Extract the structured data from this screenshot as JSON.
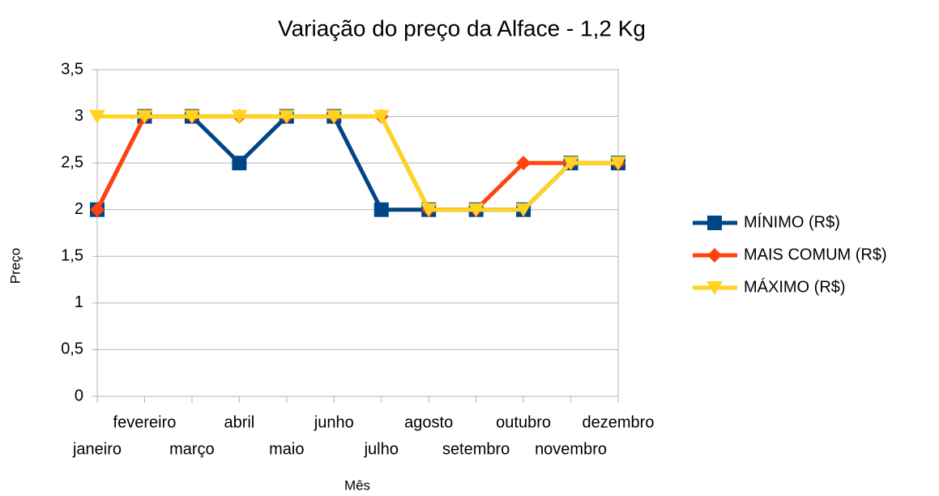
{
  "chart_data": {
    "type": "line",
    "title": "Variação do preço da Alface - 1,2 Kg",
    "x_label": "Mês",
    "y_label": "Preço",
    "categories": [
      "janeiro",
      "fevereiro",
      "março",
      "abril",
      "maio",
      "junho",
      "julho",
      "agosto",
      "setembro",
      "outubro",
      "novembro",
      "dezembro"
    ],
    "series": [
      {
        "name": "MÍNIMO (R$)",
        "color": "#004586",
        "marker": "square",
        "values": [
          2,
          3,
          3,
          2.5,
          3,
          3,
          2,
          2,
          2,
          2,
          2.5,
          2.5
        ]
      },
      {
        "name": "MAIS COMUM (R$)",
        "color": "#ff420e",
        "marker": "diamond",
        "values": [
          2,
          3,
          3,
          3,
          3,
          3,
          3,
          2,
          2,
          2.5,
          2.5,
          2.5
        ]
      },
      {
        "name": "MÁXIMO (R$)",
        "color": "#ffd320",
        "marker": "triangle-down",
        "values": [
          3,
          3,
          3,
          3,
          3,
          3,
          3,
          2,
          2,
          2,
          2.5,
          2.5
        ]
      }
    ],
    "ylim": [
      0,
      3.5
    ],
    "yticks": [
      0,
      {
        "value": 0.5,
        "label": "0,5"
      },
      1,
      {
        "value": 1.5,
        "label": "1,5"
      },
      2,
      {
        "value": 2.5,
        "label": "2,5"
      },
      3,
      {
        "value": 3.5,
        "label": "3,5"
      }
    ],
    "grid": true,
    "legend": "right"
  }
}
